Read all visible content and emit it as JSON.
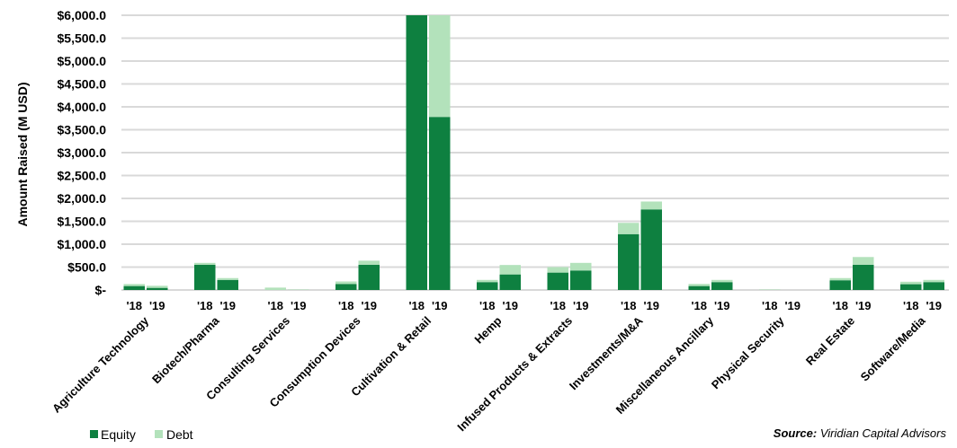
{
  "chart_data": {
    "type": "bar",
    "stacked": true,
    "ylabel": "Amount Raised (M USD)",
    "ylim": [
      0,
      6000
    ],
    "ytick_step": 500,
    "yticks": [
      "$-",
      "$500.0",
      "$1,000.0",
      "$1,500.0",
      "$2,000.0",
      "$2,500.0",
      "$3,000.0",
      "$3,500.0",
      "$4,000.0",
      "$4,500.0",
      "$5,000.0",
      "$5,500.0",
      "$6,000.0"
    ],
    "grid": true,
    "years": [
      "'18",
      "'19"
    ],
    "categories": [
      "Agriculture Technology",
      "Biotech/Pharma",
      "Consulting Services",
      "Consumption Devices",
      "Cultivation & Retail",
      "Hemp",
      "Infused Products & Extracts",
      "Investments/M&A",
      "Miscellaneous Ancillary",
      "Physical Security",
      "Real Estate",
      "Software/Media"
    ],
    "series": [
      {
        "name": "Equity",
        "color": "#0e8040",
        "values_2018": [
          86,
          552,
          0,
          132,
          6000,
          172,
          380,
          1220,
          86,
          0,
          212,
          126
        ],
        "values_2019": [
          46,
          220,
          0,
          552,
          3780,
          340,
          426,
          1760,
          172,
          0,
          552,
          172
        ]
      },
      {
        "name": "Debt",
        "color": "#b3e2bb",
        "values_2018": [
          44,
          40,
          52,
          54,
          0,
          48,
          120,
          246,
          46,
          10,
          48,
          54
        ],
        "values_2019": [
          46,
          40,
          10,
          88,
          2220,
          206,
          166,
          172,
          48,
          0,
          168,
          48
        ]
      }
    ],
    "legend": "bottom-left",
    "source_label": "Source:",
    "source_text": " Viridian Capital Advisors"
  }
}
